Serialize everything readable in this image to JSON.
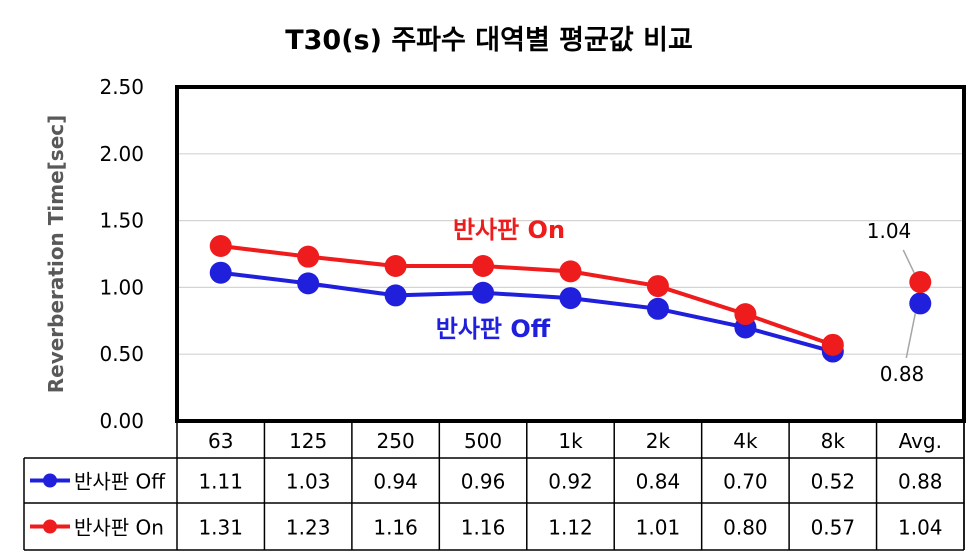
{
  "chart_data": {
    "type": "line",
    "title": "T30(s) 주파수 대역별 평균값 비교",
    "ylabel": "Reverberation Time[sec]",
    "xlabel": "",
    "ylim": [
      0,
      2.5
    ],
    "yticks": [
      "0.00",
      "0.50",
      "1.00",
      "1.50",
      "2.00",
      "2.50"
    ],
    "grid": true,
    "categories": [
      "63",
      "125",
      "250",
      "500",
      "1k",
      "2k",
      "4k",
      "8k",
      "Avg."
    ],
    "series": [
      {
        "name": "반사판 Off",
        "color": "#1f1fdc",
        "values": [
          1.11,
          1.03,
          0.94,
          0.96,
          0.92,
          0.84,
          0.7,
          0.52,
          0.88
        ],
        "labels": [
          "1.11",
          "1.03",
          "0.94",
          "0.96",
          "0.92",
          "0.84",
          "0.70",
          "0.52",
          "0.88"
        ],
        "annotation": "반사판 Off",
        "avg_label": "0.88"
      },
      {
        "name": "반사판 On",
        "color": "#ee1c1c",
        "values": [
          1.31,
          1.23,
          1.16,
          1.16,
          1.12,
          1.01,
          0.8,
          0.57,
          1.04
        ],
        "labels": [
          "1.31",
          "1.23",
          "1.16",
          "1.16",
          "1.12",
          "1.01",
          "0.80",
          "0.57",
          "1.04"
        ],
        "annotation": "반사판 On",
        "avg_label": "1.04"
      }
    ]
  }
}
